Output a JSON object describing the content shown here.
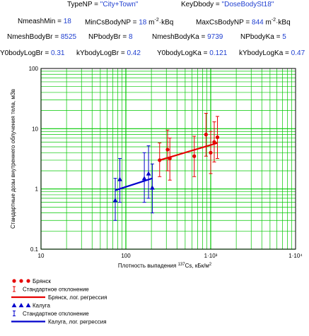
{
  "header": {
    "type_np_label": "TypeNP = ",
    "type_np_value": "\"City+Town\"",
    "keydbody_label": "KeyDbody = ",
    "keydbody_value": "\"DoseBodySt18\"",
    "nmeshmin_label": "NmeashMin = ",
    "nmeshmin_value": "18",
    "mincs_label": "MinCsBodyNP = ",
    "mincs_value": "18",
    "mincs_unit_a": "m",
    "mincs_unit_exp": "-2",
    "mincs_unit_b": "·kBq",
    "maxcs_label": "MaxCsBodyNP = ",
    "maxcs_value": "844",
    "maxcs_unit_a": "m",
    "maxcs_unit_exp": "-2",
    "maxcs_unit_b": "·kBq",
    "nmeshbr_label": "NmeshBodyBr = ",
    "nmeshbr_value": "8525",
    "npbodybr_label": "NPbodyBr = ",
    "npbodybr_value": "8",
    "nmeshka_label": "NmeshBodyKa = ",
    "nmeshka_value": "9739",
    "npbodyka_label": "NPbodyKa = ",
    "npbodyka_value": "5",
    "y0br_label": "Y0bodyLogBr = ",
    "y0br_value": "0.31",
    "kbr_label": "kYbodyLogBr = ",
    "kbr_value": "0.42",
    "y0ka_label": "Y0bodyLogKa = ",
    "y0ka_value": "0.121",
    "kka_label": "kYbodyLogKa = ",
    "kka_value": "0.47"
  },
  "colors": {
    "grid": "#00c800",
    "bryansk": "#e60000",
    "kaluga": "#0000cc",
    "header_value": "#1f3fd0"
  },
  "chart_data": {
    "type": "scatter",
    "title": "",
    "xlabel_pre": "Плотность выпадения ",
    "xlabel_sup": "137",
    "xlabel_mid": "Cs, кБк/м",
    "xlabel_sup2": "2",
    "ylabel": "Стандартные дозы внутреннего облучения тела, мЗв",
    "x_scale": "log",
    "y_scale": "log",
    "xlim": [
      10,
      10000
    ],
    "ylim": [
      0.1,
      100
    ],
    "x_ticks": [
      {
        "value": 10,
        "label": "10"
      },
      {
        "value": 100,
        "label": "100"
      },
      {
        "value": 1000,
        "label": "1000"
      },
      {
        "value": 10000,
        "label": "10000"
      }
    ],
    "x_tick_labels_display": [
      "10",
      "100",
      "1·10³",
      "1·10⁴"
    ],
    "y_ticks": [
      {
        "value": 0.1,
        "label": "0.1"
      },
      {
        "value": 1,
        "label": "1"
      },
      {
        "value": 10,
        "label": "10"
      },
      {
        "value": 100,
        "label": "100"
      }
    ],
    "grid": true,
    "series": [
      {
        "name": "Брянск",
        "color": "#e60000",
        "marker": "circle",
        "points": [
          {
            "x": 250,
            "y": 3.0,
            "low": 1.6,
            "high": 5.8
          },
          {
            "x": 310,
            "y": 4.5,
            "low": 2.0,
            "high": 9.5
          },
          {
            "x": 330,
            "y": 3.2,
            "low": 1.4,
            "high": 7.0
          },
          {
            "x": 640,
            "y": 3.5,
            "low": 1.6,
            "high": 7.5
          },
          {
            "x": 880,
            "y": 8.0,
            "low": 3.5,
            "high": 18.0
          },
          {
            "x": 1000,
            "y": 4.0,
            "low": 1.8,
            "high": 9.0
          },
          {
            "x": 1100,
            "y": 6.0,
            "low": 2.8,
            "high": 13.0
          },
          {
            "x": 1200,
            "y": 7.2,
            "low": 3.2,
            "high": 16.0
          }
        ],
        "regression_name": "Брянск, лог. регрессия",
        "regression": [
          {
            "x": 250,
            "y": 3.0
          },
          {
            "x": 1200,
            "y": 5.8
          }
        ]
      },
      {
        "name": "Калуга",
        "color": "#0000cc",
        "marker": "triangle",
        "points": [
          {
            "x": 75,
            "y": 0.65,
            "low": 0.3,
            "high": 1.5
          },
          {
            "x": 85,
            "y": 1.45,
            "low": 0.6,
            "high": 3.2
          },
          {
            "x": 165,
            "y": 1.5,
            "low": 0.6,
            "high": 4.0
          },
          {
            "x": 185,
            "y": 1.8,
            "low": 0.7,
            "high": 5.2
          },
          {
            "x": 205,
            "y": 1.05,
            "low": 0.4,
            "high": 2.6
          }
        ],
        "regression_name": "Калуга, лог. регрессия",
        "regression": [
          {
            "x": 75,
            "y": 0.95
          },
          {
            "x": 205,
            "y": 1.5
          }
        ]
      }
    ],
    "legend": {
      "placement": "bottom-left",
      "items": [
        {
          "label": "Брянск",
          "kind": "markers",
          "series": 0
        },
        {
          "label": "Стандартное отклонение",
          "kind": "errorbar",
          "series": 0
        },
        {
          "label": "Брянск, лог. регрессия",
          "kind": "line",
          "series": 0
        },
        {
          "label": "Калуга",
          "kind": "markers",
          "series": 1
        },
        {
          "label": "Стандартное отклонение",
          "kind": "errorbar",
          "series": 1
        },
        {
          "label": "Калуга, лог. регрессия",
          "kind": "line",
          "series": 1
        }
      ]
    }
  }
}
